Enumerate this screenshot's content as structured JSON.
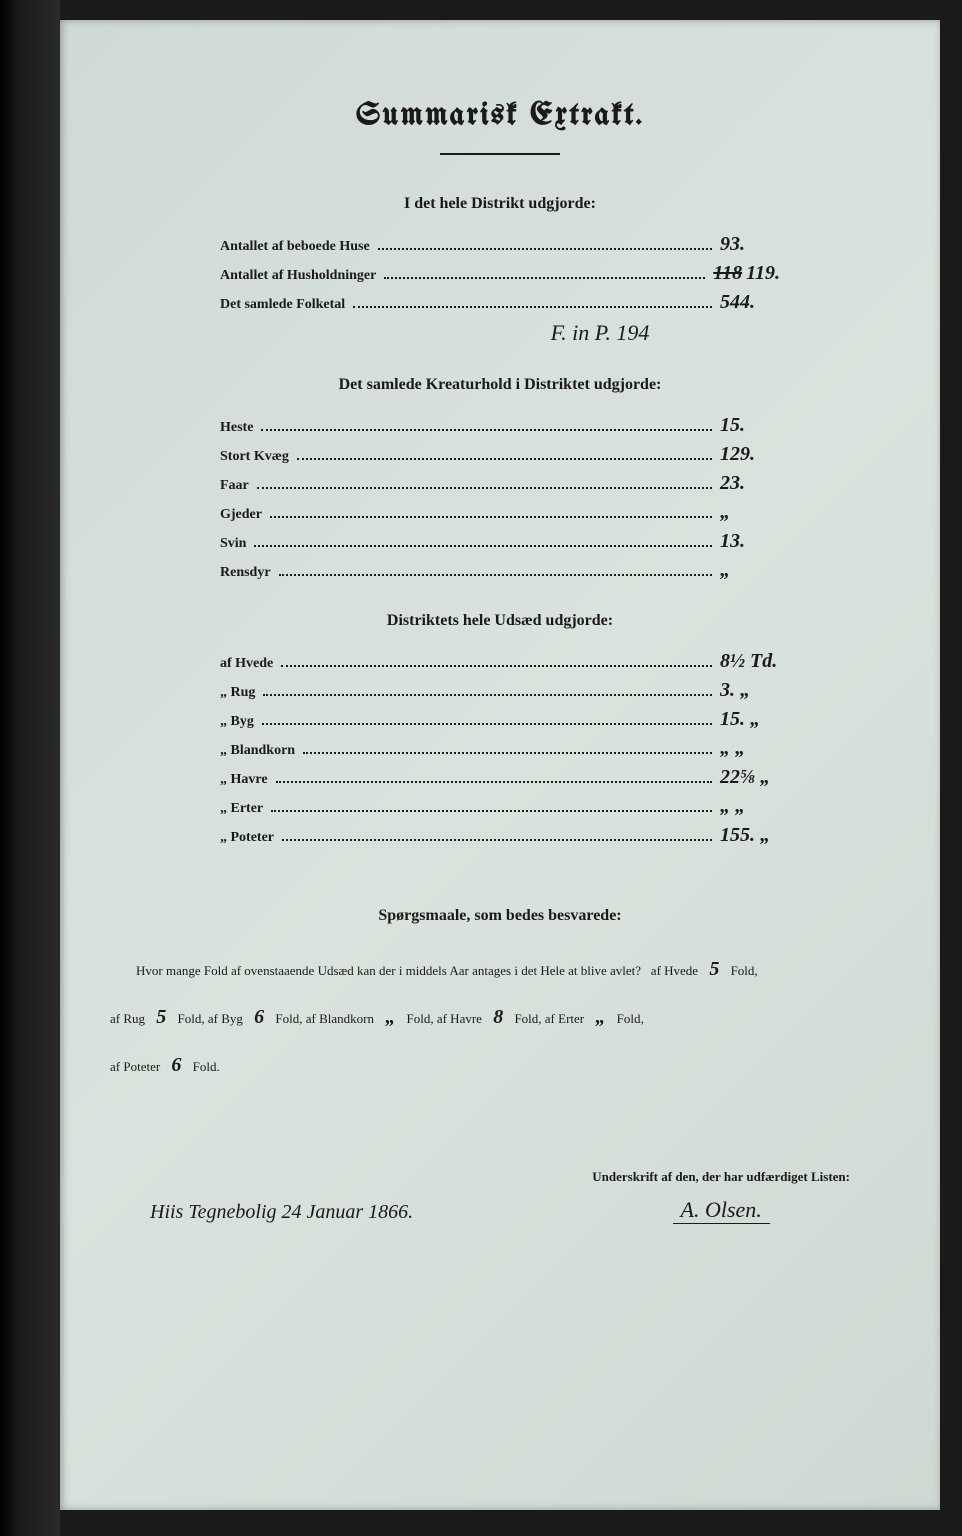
{
  "title": "Summarisk Extrakt.",
  "section1": {
    "header": "I det hele Distrikt udgjorde:",
    "rows": [
      {
        "label": "Antallet af beboede Huse",
        "value": "93."
      },
      {
        "label": "Antallet af Husholdninger",
        "struck": "118",
        "value": "119."
      },
      {
        "label": "Det samlede Folketal",
        "value": "544."
      }
    ],
    "annotation": "F. in P. 194"
  },
  "section2": {
    "header": "Det samlede Kreaturhold i Distriktet udgjorde:",
    "rows": [
      {
        "label": "Heste",
        "value": "15."
      },
      {
        "label": "Stort Kvæg",
        "value": "129."
      },
      {
        "label": "Faar",
        "value": "23."
      },
      {
        "label": "Gjeder",
        "value": "„"
      },
      {
        "label": "Svin",
        "value": "13."
      },
      {
        "label": "Rensdyr",
        "value": "„"
      }
    ]
  },
  "section3": {
    "header": "Distriktets hele Udsæd udgjorde:",
    "rows": [
      {
        "label": "af Hvede",
        "value": "8½ Td."
      },
      {
        "label": "„ Rug",
        "value": "3. „"
      },
      {
        "label": "„ Byg",
        "value": "15. „"
      },
      {
        "label": "„ Blandkorn",
        "value": "„  „"
      },
      {
        "label": "„ Havre",
        "value": "22⅝ „"
      },
      {
        "label": "„ Erter",
        "value": "„  „"
      },
      {
        "label": "„ Poteter",
        "value": "155. „"
      }
    ]
  },
  "questions": {
    "header": "Spørgsmaale, som bedes besvarede:",
    "intro": "Hvor mange Fold af ovenstaaende Udsæd kan der i middels Aar antages i det Hele at blive avlet?",
    "crops": {
      "hvede_label": "af Hvede",
      "hvede": "5",
      "rug_label": "af Rug",
      "rug": "5",
      "byg_label": "Fold, af Byg",
      "byg": "6",
      "blandkorn_label": "Fold, af Blandkorn",
      "blandkorn": "„",
      "havre_label": "Fold, af Havre",
      "havre": "8",
      "erter_label": "Fold, af Erter",
      "erter": "„",
      "poteter_label": "af Poteter",
      "poteter": "6",
      "fold_suffix": "Fold,",
      "fold_final": "Fold."
    }
  },
  "signature": {
    "date_place": "Hiis Tegnebolig 24 Januar 1866.",
    "label": "Underskrift af den, der har udfærdiget Listen:",
    "name": "A. Olsen."
  },
  "colors": {
    "page_bg": "#d8e0dc",
    "text": "#1a1a1a",
    "binding": "#000000"
  }
}
